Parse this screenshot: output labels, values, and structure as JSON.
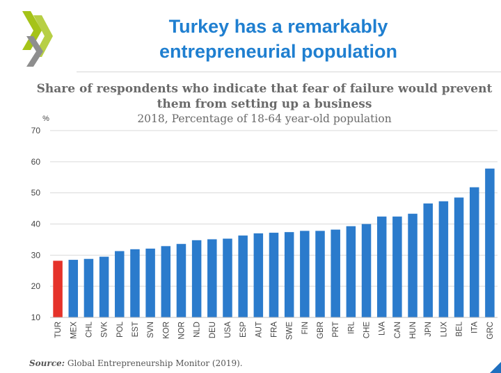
{
  "header": {
    "title_line1": "Turkey has a remarkably",
    "title_line2": "entrepreneurial population",
    "logo": "oecd-chevron-logo"
  },
  "colors": {
    "title": "#1f7fd0",
    "bar": "#2b7bcc",
    "highlight": "#e5322a",
    "logo_green": "#a5c318",
    "logo_grey": "#8e8e8e"
  },
  "chart_data": {
    "type": "bar",
    "title": "Share of respondents who indicate that fear of failure would prevent them from setting up a business",
    "subtitle": "2018, Percentage of 18-64 year-old population",
    "ylabel": "%",
    "xlabel": "",
    "ylim": [
      10,
      70
    ],
    "yticks": [
      10,
      20,
      30,
      40,
      50,
      60,
      70
    ],
    "grid": true,
    "highlight_category": "TUR",
    "categories": [
      "TUR",
      "MEX",
      "CHL",
      "SVK",
      "POL",
      "EST",
      "SVN",
      "KOR",
      "NOR",
      "NLD",
      "DEU",
      "USA",
      "ESP",
      "AUT",
      "FRA",
      "SWE",
      "FIN",
      "GBR",
      "PRT",
      "IRL",
      "CHE",
      "LVA",
      "CAN",
      "HUN",
      "JPN",
      "LUX",
      "BEL",
      "ITA",
      "GRC"
    ],
    "values": [
      28.2,
      28.5,
      28.8,
      29.5,
      31.3,
      31.9,
      32.1,
      32.9,
      33.6,
      34.8,
      35.1,
      35.3,
      36.3,
      37.0,
      37.2,
      37.4,
      37.8,
      37.8,
      38.2,
      39.3,
      40.0,
      42.4,
      42.4,
      43.3,
      46.6,
      47.3,
      48.5,
      51.8,
      57.8
    ]
  },
  "footer": {
    "source_label": "Source:",
    "source_text": " Global Entrepreneurship Monitor (2019)."
  }
}
